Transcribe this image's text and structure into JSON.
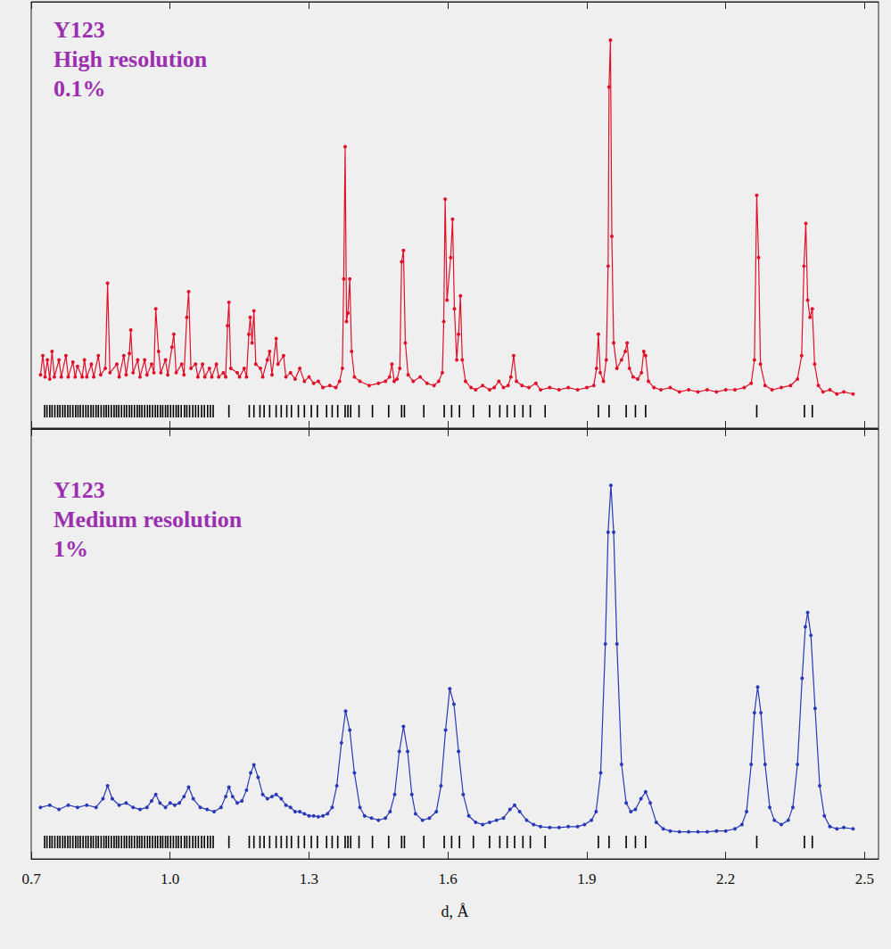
{
  "chart_data": [
    {
      "type": "line",
      "title": [
        "Y123",
        "High resolution",
        "0.1%"
      ],
      "marker": "circle",
      "color": "#e0102a",
      "tick_labels": false,
      "xlim": [
        0.7,
        2.53
      ],
      "xticks": [
        0.7,
        {
          "value": 1,
          "label": "1.0"
        },
        1.3,
        1.6,
        1.9,
        2.2,
        2.5
      ],
      "ylim": [
        0,
        100
      ],
      "x": [
        0.72,
        0.725,
        0.73,
        0.735,
        0.74,
        0.745,
        0.75,
        0.76,
        0.765,
        0.775,
        0.78,
        0.79,
        0.795,
        0.8,
        0.81,
        0.815,
        0.82,
        0.83,
        0.835,
        0.845,
        0.85,
        0.86,
        0.865,
        0.87,
        0.885,
        0.89,
        0.9,
        0.905,
        0.912,
        0.915,
        0.92,
        0.93,
        0.935,
        0.945,
        0.95,
        0.96,
        0.965,
        0.969,
        0.975,
        0.98,
        0.99,
        0.995,
        1.004,
        1.008,
        1.013,
        1.025,
        1.03,
        1.036,
        1.04,
        1.045,
        1.055,
        1.06,
        1.07,
        1.075,
        1.085,
        1.09,
        1.1,
        1.105,
        1.115,
        1.12,
        1.124,
        1.127,
        1.131,
        1.145,
        1.15,
        1.16,
        1.165,
        1.17,
        1.173,
        1.177,
        1.181,
        1.185,
        1.195,
        1.2,
        1.21,
        1.215,
        1.22,
        1.229,
        1.233,
        1.245,
        1.25,
        1.26,
        1.27,
        1.28,
        1.29,
        1.3,
        1.31,
        1.32,
        1.33,
        1.345,
        1.358,
        1.366,
        1.372,
        1.375,
        1.378,
        1.381,
        1.384,
        1.388,
        1.392,
        1.398,
        1.41,
        1.43,
        1.45,
        1.465,
        1.474,
        1.479,
        1.484,
        1.49,
        1.496,
        1.5,
        1.504,
        1.508,
        1.514,
        1.525,
        1.54,
        1.555,
        1.57,
        1.58,
        1.588,
        1.591,
        1.594,
        1.598,
        1.606,
        1.61,
        1.614,
        1.619,
        1.623,
        1.627,
        1.631,
        1.638,
        1.65,
        1.66,
        1.675,
        1.69,
        1.7,
        1.71,
        1.72,
        1.73,
        1.736,
        1.742,
        1.748,
        1.76,
        1.775,
        1.79,
        1.8,
        1.82,
        1.84,
        1.86,
        1.88,
        1.9,
        1.915,
        1.921,
        1.925,
        1.929,
        1.936,
        1.942,
        1.946,
        1.948,
        1.951,
        1.954,
        1.958,
        1.965,
        1.975,
        1.983,
        1.987,
        1.992,
        2,
        2.01,
        2.018,
        2.023,
        2.027,
        2.033,
        2.045,
        2.06,
        2.08,
        2.1,
        2.12,
        2.14,
        2.16,
        2.18,
        2.2,
        2.22,
        2.24,
        2.255,
        2.262,
        2.267,
        2.271,
        2.275,
        2.285,
        2.3,
        2.32,
        2.34,
        2.355,
        2.364,
        2.369,
        2.373,
        2.377,
        2.382,
        2.387,
        2.392,
        2.4,
        2.41,
        2.425,
        2.44,
        2.455,
        2.475
      ],
      "values": [
        12.5,
        17,
        12,
        16,
        11.5,
        18,
        12,
        16,
        12,
        17,
        12,
        15.5,
        12,
        14.5,
        12,
        16,
        12,
        15,
        12,
        17,
        12.5,
        14,
        34,
        13,
        15,
        12,
        17,
        12.5,
        17.5,
        23,
        13,
        16,
        12,
        16,
        12.5,
        15,
        13,
        28,
        18,
        13,
        16,
        12.5,
        19,
        22,
        13,
        15,
        12.5,
        26,
        32,
        14,
        15,
        12,
        15,
        12,
        14,
        12,
        15,
        12,
        13,
        12,
        24,
        29.5,
        14,
        13,
        12,
        14,
        12,
        22,
        26,
        20,
        27.5,
        15,
        14,
        12,
        16,
        18,
        12.5,
        21,
        15,
        17,
        12,
        13,
        11.5,
        14,
        11,
        12,
        10.5,
        11,
        9.5,
        10,
        9.5,
        11,
        14,
        35,
        66,
        25,
        27,
        35,
        18,
        12,
        11,
        10,
        10.5,
        11,
        12,
        15,
        11,
        11.5,
        14,
        39,
        41.7,
        20,
        12.5,
        11,
        12,
        10.5,
        10,
        11,
        13,
        25,
        53.7,
        30,
        40,
        49,
        28,
        16,
        22,
        31,
        16,
        11,
        9.5,
        9,
        10,
        9,
        9.5,
        11,
        9.5,
        10,
        12,
        17,
        11,
        10,
        9.5,
        10.5,
        9,
        9.5,
        9,
        9.5,
        9,
        9.5,
        10,
        14,
        22,
        13,
        11,
        16,
        38,
        80,
        91,
        45,
        20,
        14,
        16,
        18,
        20,
        14,
        12,
        11.5,
        13,
        18,
        17,
        11,
        9.5,
        9,
        9.5,
        8.5,
        9,
        8.5,
        9,
        8.5,
        9,
        9,
        9.5,
        10.5,
        16,
        54.6,
        40,
        15,
        10,
        9,
        9.5,
        10,
        11.5,
        17,
        38,
        48,
        30,
        26,
        28,
        15,
        10,
        8.5,
        9,
        8,
        8.5,
        8
      ],
      "reflections": [
        0.729,
        0.734,
        0.74,
        0.745,
        0.751,
        0.757,
        0.762,
        0.768,
        0.773,
        0.779,
        0.784,
        0.79,
        0.796,
        0.801,
        0.806,
        0.812,
        0.818,
        0.823,
        0.829,
        0.834,
        0.84,
        0.845,
        0.851,
        0.857,
        0.862,
        0.867,
        0.873,
        0.879,
        0.884,
        0.889,
        0.895,
        0.901,
        0.906,
        0.912,
        0.917,
        0.923,
        0.929,
        0.934,
        0.939,
        0.945,
        0.951,
        0.956,
        0.962,
        0.968,
        0.973,
        0.979,
        0.984,
        0.99,
        0.995,
        1.001,
        1.007,
        1.013,
        1.018,
        1.024,
        1.031,
        1.036,
        1.042,
        1.049,
        1.055,
        1.061,
        1.068,
        1.074,
        1.081,
        1.087,
        1.093,
        1.127,
        1.171,
        1.181,
        1.194,
        1.203,
        1.215,
        1.229,
        1.24,
        1.252,
        1.262,
        1.277,
        1.29,
        1.305,
        1.318,
        1.338,
        1.35,
        1.362,
        1.378,
        1.384,
        1.39,
        1.408,
        1.437,
        1.472,
        1.5,
        1.506,
        1.548,
        1.592,
        1.608,
        1.625,
        1.655,
        1.69,
        1.712,
        1.728,
        1.744,
        1.762,
        1.778,
        1.81,
        1.925,
        1.948,
        1.985,
        2.005,
        2.027,
        2.267,
        2.37,
        2.387
      ]
    },
    {
      "type": "line",
      "title": [
        "Y123",
        "Medium resolution",
        "1%"
      ],
      "marker": "circle",
      "color": "#2838b8",
      "tick_labels": "x",
      "xlabel": "d, Å",
      "xlim": [
        0.7,
        2.53
      ],
      "xticks": [
        0.7,
        {
          "value": 1,
          "label": "1.0"
        },
        1.3,
        1.6,
        1.9,
        2.2,
        2.5
      ],
      "ylim": [
        0,
        100
      ],
      "x": [
        0.72,
        0.74,
        0.76,
        0.78,
        0.8,
        0.82,
        0.84,
        0.855,
        0.865,
        0.875,
        0.89,
        0.905,
        0.92,
        0.935,
        0.95,
        0.96,
        0.969,
        0.978,
        0.99,
        1,
        1.01,
        1.02,
        1.03,
        1.04,
        1.05,
        1.065,
        1.08,
        1.095,
        1.11,
        1.12,
        1.127,
        1.135,
        1.145,
        1.155,
        1.165,
        1.174,
        1.181,
        1.19,
        1.2,
        1.21,
        1.22,
        1.229,
        1.24,
        1.25,
        1.26,
        1.27,
        1.28,
        1.29,
        1.3,
        1.31,
        1.32,
        1.33,
        1.34,
        1.35,
        1.36,
        1.37,
        1.379,
        1.388,
        1.398,
        1.41,
        1.42,
        1.435,
        1.45,
        1.465,
        1.475,
        1.485,
        1.495,
        1.504,
        1.513,
        1.522,
        1.53,
        1.545,
        1.56,
        1.575,
        1.585,
        1.595,
        1.604,
        1.613,
        1.623,
        1.633,
        1.645,
        1.66,
        1.675,
        1.69,
        1.705,
        1.72,
        1.734,
        1.744,
        1.755,
        1.77,
        1.785,
        1.8,
        1.82,
        1.84,
        1.86,
        1.88,
        1.895,
        1.91,
        1.92,
        1.93,
        1.94,
        1.946,
        1.952,
        1.958,
        1.965,
        1.975,
        1.985,
        1.995,
        2.005,
        2.017,
        2.027,
        2.037,
        2.05,
        2.065,
        2.08,
        2.1,
        2.12,
        2.14,
        2.16,
        2.18,
        2.2,
        2.22,
        2.235,
        2.245,
        2.255,
        2.262,
        2.269,
        2.276,
        2.285,
        2.295,
        2.305,
        2.32,
        2.335,
        2.345,
        2.355,
        2.365,
        2.372,
        2.377,
        2.384,
        2.393,
        2.403,
        2.413,
        2.425,
        2.44,
        2.455,
        2.475
      ],
      "values": [
        12,
        12.5,
        11.5,
        12.5,
        12,
        12.5,
        12,
        14,
        17,
        14,
        12.5,
        13,
        12,
        11.5,
        12,
        13.5,
        15,
        13,
        12,
        13,
        12.5,
        13,
        14.5,
        16.7,
        14,
        12,
        11.5,
        11,
        12,
        14.5,
        16.7,
        14.5,
        13,
        13.5,
        16,
        20,
        21.9,
        19,
        15,
        14,
        14.5,
        15,
        14,
        12.5,
        12,
        11,
        11,
        10.5,
        10,
        10,
        9.8,
        10,
        10.5,
        12,
        17,
        27,
        34.4,
        30,
        20,
        12,
        10,
        9.5,
        9,
        9.5,
        11,
        15,
        25,
        30.8,
        25,
        15,
        10.5,
        9,
        9.5,
        11,
        17,
        30,
        39.6,
        36,
        25,
        15,
        10,
        8.5,
        8,
        8.5,
        9,
        9.5,
        11.5,
        12.5,
        11,
        9,
        8,
        7.5,
        7.3,
        7.3,
        7.5,
        7.5,
        8,
        9,
        11,
        20,
        50,
        76,
        86.9,
        76,
        50,
        22,
        13,
        11,
        11.5,
        14,
        15.6,
        13,
        8.5,
        7,
        6.5,
        6.3,
        6.3,
        6.3,
        6.3,
        6.5,
        6.5,
        7,
        8,
        11,
        22,
        34,
        40,
        34,
        22,
        12,
        9,
        8,
        9,
        12,
        22,
        42,
        54,
        57.3,
        52,
        35,
        17,
        10,
        7.5,
        7,
        7.3,
        7
      ],
      "reflections": [
        0.729,
        0.734,
        0.74,
        0.745,
        0.751,
        0.757,
        0.762,
        0.768,
        0.773,
        0.779,
        0.784,
        0.79,
        0.796,
        0.801,
        0.806,
        0.812,
        0.818,
        0.823,
        0.829,
        0.834,
        0.84,
        0.845,
        0.851,
        0.857,
        0.862,
        0.867,
        0.873,
        0.879,
        0.884,
        0.889,
        0.895,
        0.901,
        0.906,
        0.912,
        0.917,
        0.923,
        0.929,
        0.934,
        0.939,
        0.945,
        0.951,
        0.956,
        0.962,
        0.968,
        0.973,
        0.979,
        0.984,
        0.99,
        0.995,
        1.001,
        1.007,
        1.013,
        1.018,
        1.024,
        1.031,
        1.036,
        1.042,
        1.049,
        1.055,
        1.061,
        1.068,
        1.074,
        1.081,
        1.087,
        1.093,
        1.127,
        1.171,
        1.181,
        1.194,
        1.203,
        1.215,
        1.229,
        1.24,
        1.252,
        1.262,
        1.277,
        1.29,
        1.305,
        1.318,
        1.338,
        1.35,
        1.362,
        1.378,
        1.384,
        1.39,
        1.408,
        1.437,
        1.472,
        1.5,
        1.506,
        1.548,
        1.592,
        1.608,
        1.625,
        1.655,
        1.69,
        1.712,
        1.728,
        1.744,
        1.762,
        1.778,
        1.81,
        1.925,
        1.948,
        1.985,
        2.005,
        2.027,
        2.267,
        2.37,
        2.387
      ]
    }
  ]
}
